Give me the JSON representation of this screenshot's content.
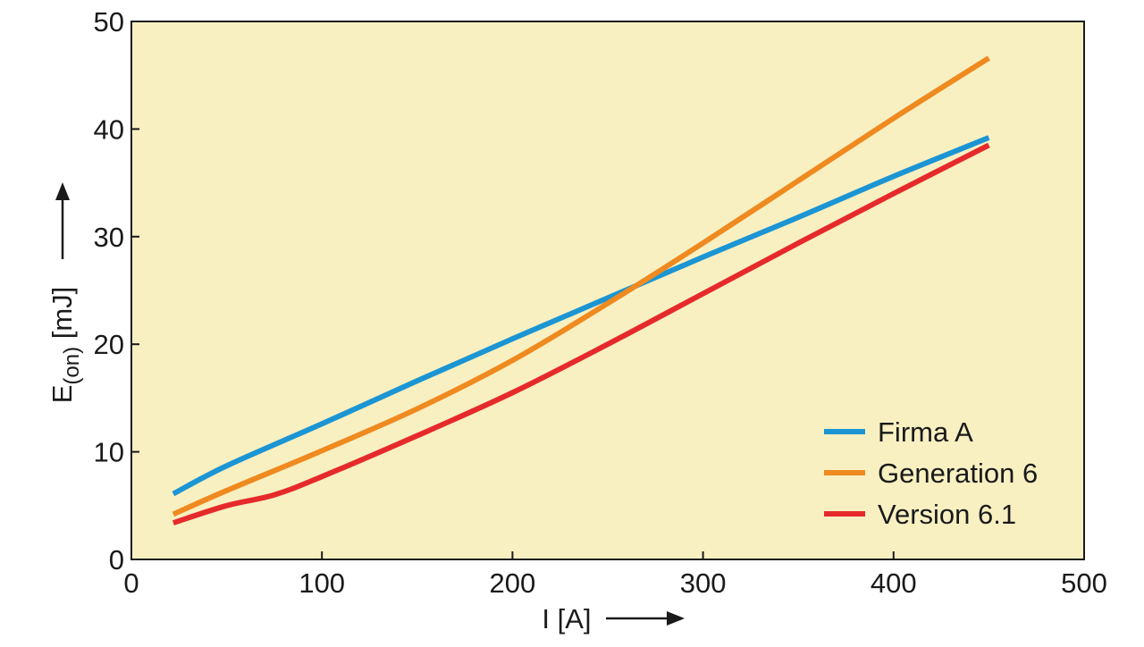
{
  "chart_data": {
    "type": "line",
    "xlabel": "I [A]",
    "ylabel_main": "E",
    "ylabel_sub": "(on)",
    "ylabel_unit": " [mJ]",
    "xlim": [
      0,
      500
    ],
    "ylim": [
      0,
      50
    ],
    "x_ticks": [
      0,
      100,
      200,
      300,
      400,
      500
    ],
    "y_ticks": [
      0,
      10,
      20,
      30,
      40,
      50
    ],
    "grid": false,
    "legend_position": "bottom-right",
    "plot_background": "#f9f0c2",
    "series": [
      {
        "name": "Firma A",
        "color": "#1b95d3",
        "x": [
          22,
          50,
          100,
          150,
          200,
          250,
          300,
          350,
          400,
          450
        ],
        "y": [
          6.1,
          8.7,
          12.6,
          16.6,
          20.5,
          24.3,
          28.1,
          31.8,
          35.6,
          39.2
        ]
      },
      {
        "name": "Generation 6",
        "color": "#ef8a20",
        "x": [
          22,
          50,
          100,
          150,
          200,
          250,
          300,
          350,
          400,
          450
        ],
        "y": [
          4.2,
          6.4,
          10.1,
          14.0,
          18.5,
          23.8,
          29.4,
          35.2,
          41.0,
          46.6
        ]
      },
      {
        "name": "Version 6.1",
        "color": "#e62a2c",
        "x": [
          22,
          50,
          75,
          100,
          150,
          200,
          250,
          300,
          350,
          400,
          450
        ],
        "y": [
          3.4,
          5.0,
          6.0,
          7.7,
          11.5,
          15.5,
          20.0,
          24.7,
          29.4,
          34.0,
          38.5
        ]
      }
    ]
  }
}
